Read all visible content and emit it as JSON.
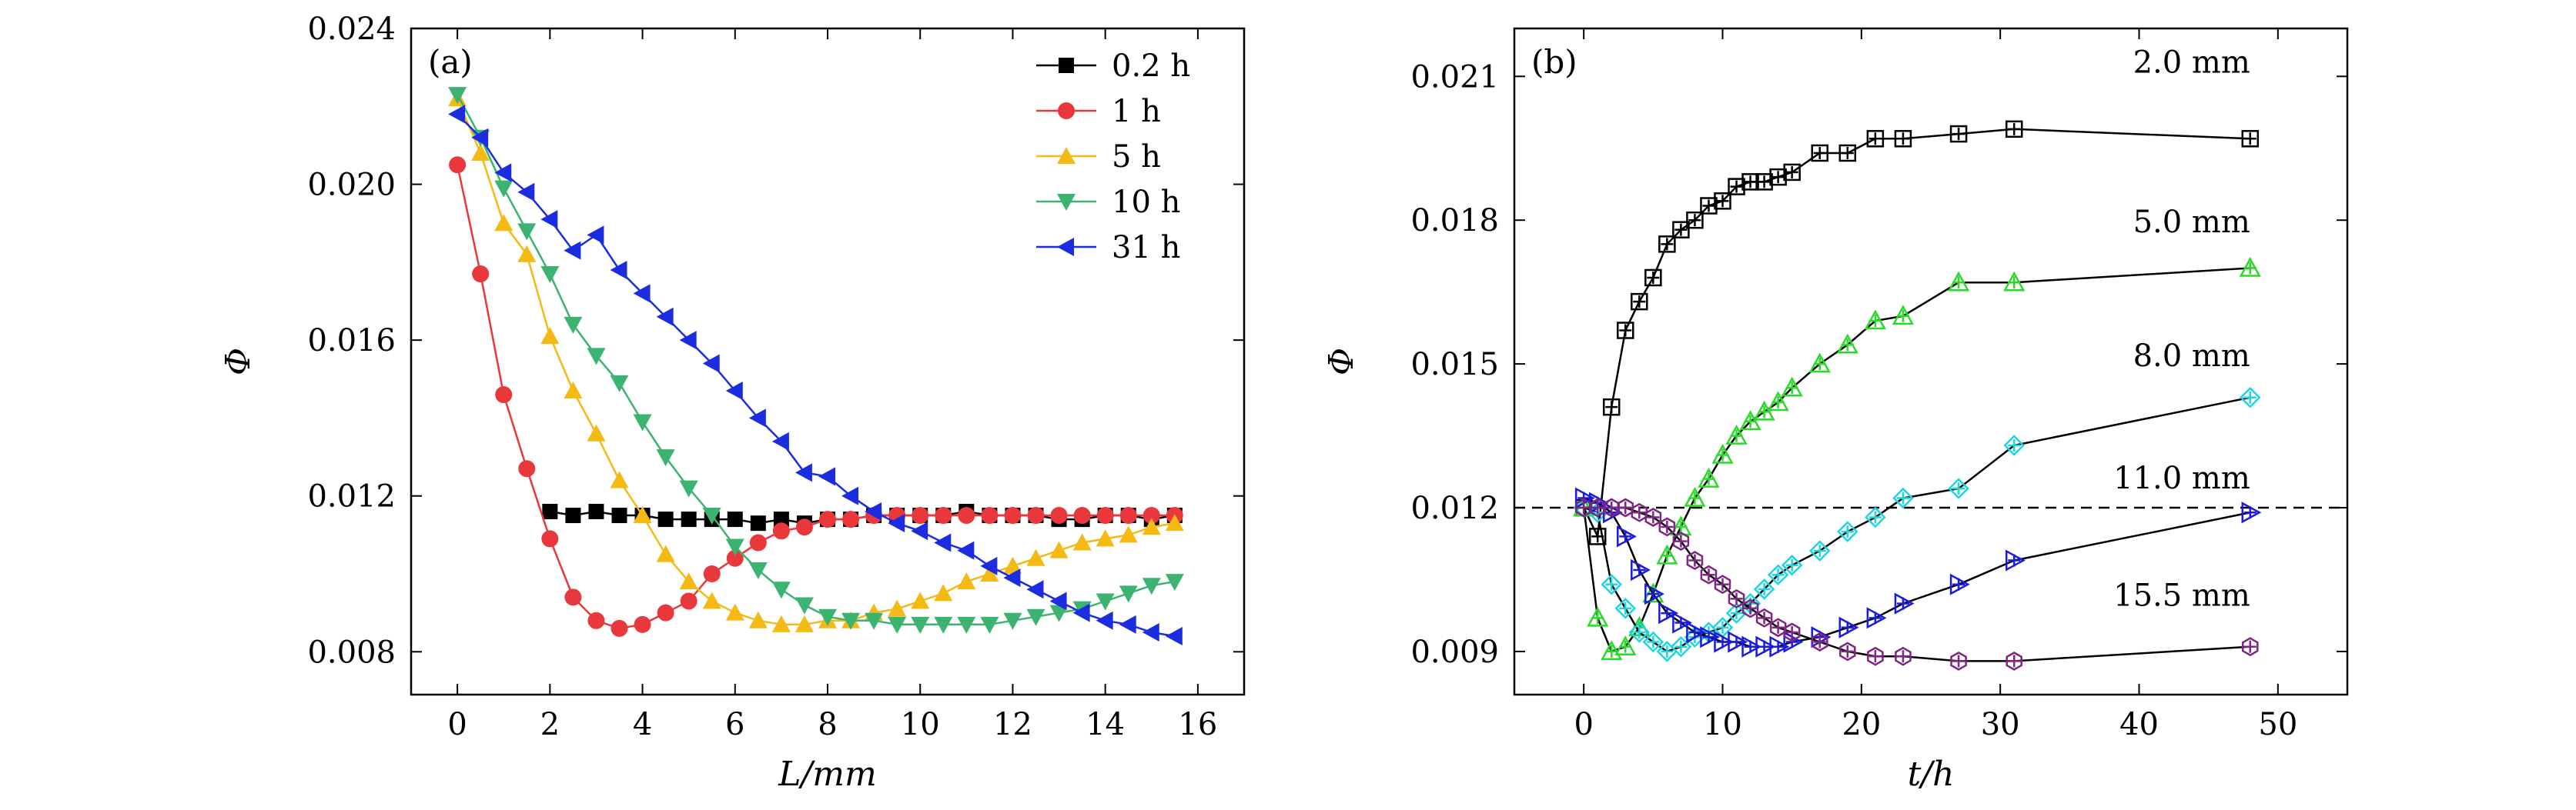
{
  "figure": {
    "panels": [
      "(a)",
      "(b)"
    ]
  },
  "chart_data": [
    {
      "type": "line",
      "panel_label": "(a)",
      "xlabel": "L/mm",
      "ylabel": "Φ",
      "xlim": [
        -1,
        17
      ],
      "ylim": [
        0.0069,
        0.024
      ],
      "xticks": [
        0,
        2,
        4,
        6,
        8,
        10,
        12,
        14,
        16
      ],
      "xtick_labels": [
        "0",
        "2",
        "4",
        "6",
        "8",
        "10",
        "12",
        "14",
        "16"
      ],
      "yticks": [
        0.008,
        0.012,
        0.016,
        0.02,
        0.024
      ],
      "ytick_labels": [
        "0.008",
        "0.012",
        "0.016",
        "0.020",
        "0.024"
      ],
      "grid": false,
      "legend_position": "top-right",
      "series": [
        {
          "name": "0.2 h",
          "color": "#000000",
          "marker": "square",
          "x": [
            2,
            2.5,
            3,
            3.5,
            4,
            4.5,
            5,
            5.5,
            6,
            6.5,
            7,
            7.5,
            8,
            8.5,
            9,
            9.5,
            10,
            10.5,
            11,
            11.5,
            12,
            12.5,
            13,
            13.5,
            14,
            14.5,
            15,
            15.5
          ],
          "y": [
            0.0116,
            0.0115,
            0.0116,
            0.0115,
            0.0115,
            0.0114,
            0.0114,
            0.0114,
            0.0114,
            0.0113,
            0.0114,
            0.0113,
            0.0114,
            0.0114,
            0.0115,
            0.0115,
            0.0115,
            0.0115,
            0.0116,
            0.0115,
            0.0115,
            0.0115,
            0.0114,
            0.0114,
            0.0115,
            0.0115,
            0.0114,
            0.0115
          ]
        },
        {
          "name": "1 h",
          "color": "#e8383b",
          "marker": "circle",
          "x": [
            0,
            0.5,
            1,
            1.5,
            2,
            2.5,
            3,
            3.5,
            4,
            4.5,
            5,
            5.5,
            6,
            6.5,
            7,
            7.5,
            8,
            8.5,
            9,
            9.5,
            10,
            10.5,
            11,
            11.5,
            12,
            12.5,
            13,
            13.5,
            14,
            14.5,
            15,
            15.5
          ],
          "y": [
            0.0205,
            0.0177,
            0.0146,
            0.0127,
            0.0109,
            0.0094,
            0.0088,
            0.0086,
            0.0087,
            0.009,
            0.0093,
            0.01,
            0.0104,
            0.0108,
            0.0111,
            0.0112,
            0.0114,
            0.0114,
            0.0115,
            0.0115,
            0.0115,
            0.0115,
            0.0115,
            0.0115,
            0.0115,
            0.0115,
            0.0115,
            0.0115,
            0.0115,
            0.0115,
            0.0115,
            0.0115
          ]
        },
        {
          "name": "5 h",
          "color": "#f4b913",
          "marker": "triangle-up",
          "x": [
            0,
            0.5,
            1,
            1.5,
            2,
            2.5,
            3,
            3.5,
            4,
            4.5,
            5,
            5.5,
            6,
            6.5,
            7,
            7.5,
            8,
            8.5,
            9,
            9.5,
            10,
            10.5,
            11,
            11.5,
            12,
            12.5,
            13,
            13.5,
            14,
            14.5,
            15,
            15.5
          ],
          "y": [
            0.0222,
            0.0208,
            0.019,
            0.0182,
            0.0161,
            0.0147,
            0.0136,
            0.0124,
            0.0115,
            0.0105,
            0.0098,
            0.0093,
            0.009,
            0.0088,
            0.0087,
            0.0087,
            0.0088,
            0.0088,
            0.009,
            0.0091,
            0.0093,
            0.0095,
            0.0098,
            0.01,
            0.0102,
            0.0104,
            0.0106,
            0.0108,
            0.0109,
            0.011,
            0.0112,
            0.0113
          ]
        },
        {
          "name": "10 h",
          "color": "#3cb371",
          "marker": "triangle-down",
          "x": [
            0,
            0.5,
            1,
            1.5,
            2,
            2.5,
            3,
            3.5,
            4,
            4.5,
            5,
            5.5,
            6,
            6.5,
            7,
            7.5,
            8,
            8.5,
            9,
            9.5,
            10,
            10.5,
            11,
            11.5,
            12,
            12.5,
            13,
            13.5,
            14,
            14.5,
            15,
            15.5
          ],
          "y": [
            0.0223,
            0.0212,
            0.0199,
            0.0188,
            0.0177,
            0.0164,
            0.0156,
            0.0149,
            0.0139,
            0.013,
            0.0122,
            0.0115,
            0.0107,
            0.0101,
            0.0096,
            0.0092,
            0.0089,
            0.0088,
            0.0088,
            0.0087,
            0.0087,
            0.0087,
            0.0087,
            0.0087,
            0.0088,
            0.0089,
            0.009,
            0.0091,
            0.0093,
            0.0095,
            0.0097,
            0.0098
          ]
        },
        {
          "name": "31 h",
          "color": "#1c2de0",
          "marker": "triangle-left",
          "x": [
            0,
            0.5,
            1,
            1.5,
            2,
            2.5,
            3,
            3.5,
            4,
            4.5,
            5,
            5.5,
            6,
            6.5,
            7,
            7.5,
            8,
            8.5,
            9,
            9.5,
            10,
            10.5,
            11,
            11.5,
            12,
            12.5,
            13,
            13.5,
            14,
            14.5,
            15,
            15.5
          ],
          "y": [
            0.0218,
            0.0212,
            0.0203,
            0.0198,
            0.0191,
            0.0183,
            0.0187,
            0.0178,
            0.0172,
            0.0166,
            0.016,
            0.0154,
            0.0147,
            0.014,
            0.0134,
            0.0126,
            0.0125,
            0.012,
            0.0116,
            0.0113,
            0.0111,
            0.0108,
            0.0106,
            0.0102,
            0.0099,
            0.0096,
            0.0093,
            0.009,
            0.0088,
            0.0087,
            0.0085,
            0.0084
          ]
        }
      ]
    },
    {
      "type": "line",
      "panel_label": "(b)",
      "xlabel": "t/h",
      "ylabel": "Φ",
      "xlim": [
        -5,
        55
      ],
      "ylim": [
        0.0081,
        0.022
      ],
      "xticks": [
        0,
        10,
        20,
        30,
        40,
        50
      ],
      "xtick_labels": [
        "0",
        "10",
        "20",
        "30",
        "40",
        "50"
      ],
      "yticks": [
        0.009,
        0.012,
        0.015,
        0.018,
        0.021
      ],
      "ytick_labels": [
        "0.009",
        "0.012",
        "0.015",
        "0.018",
        "0.021"
      ],
      "grid": false,
      "reference_line": {
        "y": 0.012,
        "style": "dashed"
      },
      "series": [
        {
          "name": "2.0 mm",
          "color": "#000000",
          "marker": "square-plus",
          "x": [
            0,
            1,
            2,
            3,
            4,
            5,
            6,
            7,
            8,
            9,
            10,
            11,
            12,
            13,
            14,
            15,
            17,
            19,
            21,
            23,
            27,
            31,
            48
          ],
          "y": [
            0.012,
            0.0114,
            0.0141,
            0.0157,
            0.0163,
            0.0168,
            0.0175,
            0.0178,
            0.018,
            0.0183,
            0.0184,
            0.0187,
            0.0188,
            0.0188,
            0.0189,
            0.019,
            0.0194,
            0.0194,
            0.0197,
            0.0197,
            0.0198,
            0.0199,
            0.0197
          ]
        },
        {
          "name": "5.0 mm",
          "color": "#2bd92b",
          "marker": "triangle-plus",
          "x": [
            0,
            1,
            2,
            3,
            4,
            5,
            6,
            7,
            8,
            9,
            10,
            11,
            12,
            13,
            14,
            15,
            17,
            19,
            21,
            23,
            27,
            31,
            48
          ],
          "y": [
            0.012,
            0.0097,
            0.009,
            0.0091,
            0.0095,
            0.0102,
            0.011,
            0.0116,
            0.0122,
            0.0126,
            0.0131,
            0.0135,
            0.0138,
            0.014,
            0.0142,
            0.0145,
            0.015,
            0.0154,
            0.0159,
            0.016,
            0.0167,
            0.0167,
            0.017
          ]
        },
        {
          "name": "8.0 mm",
          "color": "#1ed4e0",
          "marker": "diamond-plus",
          "x": [
            0,
            1,
            2,
            3,
            4,
            5,
            6,
            7,
            8,
            9,
            10,
            11,
            12,
            13,
            14,
            15,
            17,
            19,
            21,
            23,
            27,
            31,
            48
          ],
          "y": [
            0.012,
            0.0119,
            0.0104,
            0.0099,
            0.0094,
            0.0092,
            0.009,
            0.0091,
            0.0093,
            0.0094,
            0.0095,
            0.0098,
            0.01,
            0.0103,
            0.0106,
            0.0108,
            0.0111,
            0.0115,
            0.0118,
            0.0122,
            0.0124,
            0.0133,
            0.0143
          ]
        },
        {
          "name": "11.0 mm",
          "color": "#1b1bdb",
          "marker": "triangle-right-plus",
          "x": [
            0,
            1,
            2,
            3,
            4,
            5,
            6,
            7,
            8,
            9,
            10,
            11,
            12,
            13,
            14,
            15,
            17,
            19,
            21,
            23,
            27,
            31,
            48
          ],
          "y": [
            0.0122,
            0.0121,
            0.0119,
            0.0114,
            0.0107,
            0.0102,
            0.0098,
            0.0096,
            0.0094,
            0.0093,
            0.0092,
            0.0092,
            0.0091,
            0.0091,
            0.0091,
            0.0092,
            0.0093,
            0.0095,
            0.0097,
            0.01,
            0.0104,
            0.0109,
            0.0119
          ]
        },
        {
          "name": "15.5 mm",
          "color": "#7e2682",
          "marker": "hexagon-plus",
          "x": [
            0,
            1,
            2,
            3,
            4,
            5,
            6,
            7,
            8,
            9,
            10,
            11,
            12,
            13,
            14,
            15,
            17,
            19,
            21,
            23,
            27,
            31,
            48
          ],
          "y": [
            0.012,
            0.012,
            0.012,
            0.012,
            0.0119,
            0.0118,
            0.0116,
            0.0113,
            0.0109,
            0.0106,
            0.0104,
            0.0101,
            0.0099,
            0.0097,
            0.0095,
            0.0094,
            0.0092,
            0.009,
            0.0089,
            0.0089,
            0.0088,
            0.0088,
            0.0091
          ]
        }
      ]
    }
  ]
}
